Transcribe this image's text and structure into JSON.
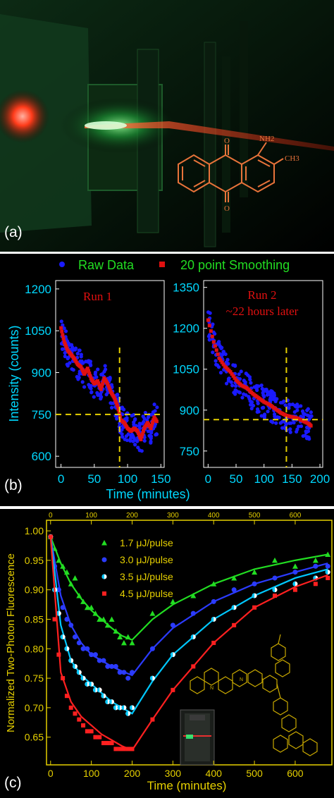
{
  "panel_a": {
    "label": "(a)",
    "molecule": {
      "nh2": "NH2",
      "ch3": "CH3",
      "o_top": "O",
      "o_bottom": "O",
      "color": "#e8733a"
    }
  },
  "panel_b": {
    "label": "(b)",
    "legend": {
      "raw": "Raw Data",
      "smooth": "20 point Smoothing"
    },
    "xlabel": "Time (minutes)",
    "ylabel": "Intensity (counts)",
    "colors": {
      "raw": "#1a1aff",
      "smooth": "#e01010",
      "axis_label": "#00d8ff",
      "legend_text": "#22dd22",
      "guide": "#e6d000"
    }
  },
  "panel_c": {
    "label": "(c)",
    "xlabel": "Time (minutes)",
    "ylabel": "Normalized Two-Photon Fluorescence",
    "colors": {
      "axis": "#e6d000",
      "text": "#e6d000"
    }
  },
  "chart_data": [
    {
      "type": "scatter",
      "title": "Run 1",
      "xlabel": "Time (minutes)",
      "ylabel": "Intensity (counts)",
      "xlim": [
        -8,
        155
      ],
      "ylim": [
        560,
        1230
      ],
      "xticks": [
        0,
        50,
        100,
        150
      ],
      "yticks": [
        600,
        750,
        900,
        1050,
        1200
      ],
      "hline": 750,
      "vline": 88,
      "series": [
        {
          "name": "20 point Smoothing",
          "x": [
            0,
            5,
            10,
            15,
            20,
            25,
            30,
            35,
            40,
            45,
            50,
            55,
            60,
            65,
            70,
            75,
            80,
            85,
            90,
            95,
            100,
            105,
            110,
            115,
            120,
            125,
            130,
            135,
            140,
            145
          ],
          "y": [
            1060,
            1010,
            980,
            965,
            950,
            930,
            920,
            895,
            915,
            880,
            860,
            870,
            840,
            880,
            860,
            830,
            810,
            780,
            730,
            720,
            700,
            690,
            700,
            690,
            660,
            700,
            720,
            700,
            740,
            720
          ]
        }
      ]
    },
    {
      "type": "scatter",
      "title": "Run 2\n~22 hours later",
      "xlabel": "Time (minutes)",
      "ylabel": "",
      "xlim": [
        -8,
        205
      ],
      "ylim": [
        690,
        1375
      ],
      "xticks": [
        0,
        50,
        100,
        150,
        200
      ],
      "yticks": [
        750,
        900,
        1050,
        1200,
        1350
      ],
      "hline": 865,
      "vline": 140,
      "series": [
        {
          "name": "20 point Smoothing",
          "x": [
            0,
            10,
            20,
            30,
            40,
            50,
            60,
            70,
            80,
            90,
            100,
            110,
            120,
            130,
            140,
            150,
            160,
            170,
            180,
            185
          ],
          "y": [
            1230,
            1150,
            1090,
            1060,
            1040,
            1010,
            990,
            980,
            960,
            945,
            930,
            920,
            905,
            890,
            880,
            875,
            870,
            860,
            850,
            840
          ]
        }
      ]
    },
    {
      "type": "scatter",
      "xlabel": "Time (minutes)",
      "ylabel": "Normalized Two-Photon Fluorescence",
      "xlim": [
        -10,
        690
      ],
      "ylim": [
        0.603,
        1.018
      ],
      "xticks": [
        0,
        100,
        200,
        300,
        400,
        500,
        600
      ],
      "yticks": [
        0.65,
        0.7,
        0.75,
        0.8,
        0.85,
        0.9,
        0.95,
        1.0
      ],
      "series": [
        {
          "name": "1.7 μJ/pulse",
          "color": "#22dd22",
          "marker": "triangle",
          "points_x": [
            0,
            10,
            20,
            30,
            40,
            50,
            60,
            70,
            80,
            90,
            100,
            110,
            120,
            130,
            140,
            150,
            160,
            170,
            180,
            190,
            200,
            250,
            300,
            350,
            400,
            450,
            500,
            550,
            600,
            650,
            680
          ],
          "points_y": [
            0.99,
            0.97,
            0.95,
            0.94,
            0.93,
            0.91,
            0.92,
            0.89,
            0.88,
            0.87,
            0.87,
            0.86,
            0.85,
            0.85,
            0.84,
            0.85,
            0.83,
            0.82,
            0.81,
            0.82,
            0.81,
            0.86,
            0.88,
            0.89,
            0.91,
            0.92,
            0.93,
            0.95,
            0.94,
            0.95,
            0.96
          ],
          "fit_x": [
            0,
            25,
            50,
            75,
            100,
            125,
            150,
            175,
            200,
            250,
            300,
            400,
            500,
            600,
            680
          ],
          "fit_y": [
            0.99,
            0.945,
            0.91,
            0.885,
            0.865,
            0.85,
            0.835,
            0.822,
            0.815,
            0.85,
            0.875,
            0.91,
            0.935,
            0.95,
            0.96
          ]
        },
        {
          "name": "3.0 μJ/pulse",
          "color": "#2b3bff",
          "marker": "circle",
          "points_x": [
            0,
            10,
            20,
            30,
            40,
            50,
            60,
            70,
            80,
            90,
            100,
            110,
            120,
            130,
            140,
            150,
            160,
            170,
            180,
            190,
            200,
            250,
            300,
            350,
            400,
            450,
            500,
            550,
            600,
            650,
            680
          ],
          "points_y": [
            0.99,
            0.94,
            0.9,
            0.87,
            0.85,
            0.84,
            0.82,
            0.81,
            0.8,
            0.8,
            0.79,
            0.79,
            0.78,
            0.78,
            0.77,
            0.77,
            0.77,
            0.76,
            0.76,
            0.75,
            0.76,
            0.8,
            0.84,
            0.86,
            0.88,
            0.9,
            0.91,
            0.92,
            0.93,
            0.94,
            0.94
          ],
          "fit_x": [
            0,
            25,
            50,
            75,
            100,
            125,
            150,
            175,
            200,
            250,
            300,
            400,
            500,
            600,
            680
          ],
          "fit_y": [
            0.99,
            0.89,
            0.84,
            0.81,
            0.79,
            0.78,
            0.77,
            0.762,
            0.755,
            0.8,
            0.835,
            0.88,
            0.91,
            0.93,
            0.945
          ]
        },
        {
          "name": "3.5 μJ/pulse",
          "color": "#00c8ff",
          "marker": "half-circle",
          "points_x": [
            0,
            10,
            20,
            30,
            40,
            50,
            60,
            70,
            80,
            90,
            100,
            110,
            120,
            130,
            140,
            150,
            160,
            170,
            180,
            190,
            200,
            250,
            300,
            350,
            400,
            450,
            500,
            550,
            600,
            650,
            680
          ],
          "points_y": [
            0.99,
            0.9,
            0.86,
            0.82,
            0.8,
            0.78,
            0.77,
            0.76,
            0.75,
            0.74,
            0.74,
            0.73,
            0.73,
            0.72,
            0.71,
            0.71,
            0.7,
            0.7,
            0.7,
            0.69,
            0.7,
            0.75,
            0.79,
            0.82,
            0.85,
            0.87,
            0.89,
            0.9,
            0.91,
            0.92,
            0.93
          ],
          "fit_x": [
            0,
            25,
            50,
            75,
            100,
            125,
            150,
            175,
            200,
            250,
            300,
            400,
            500,
            600,
            680
          ],
          "fit_y": [
            0.99,
            0.84,
            0.78,
            0.755,
            0.74,
            0.725,
            0.71,
            0.7,
            0.69,
            0.745,
            0.79,
            0.85,
            0.89,
            0.92,
            0.935
          ]
        },
        {
          "name": "4.5 μJ/pulse",
          "color": "#ff2020",
          "marker": "square",
          "points_x": [
            0,
            10,
            20,
            30,
            40,
            50,
            60,
            70,
            80,
            90,
            100,
            110,
            120,
            130,
            140,
            150,
            160,
            170,
            180,
            190,
            200,
            250,
            300,
            350,
            400,
            450,
            500,
            550,
            600,
            650,
            680
          ],
          "points_y": [
            0.99,
            0.85,
            0.79,
            0.75,
            0.72,
            0.7,
            0.69,
            0.68,
            0.67,
            0.66,
            0.66,
            0.65,
            0.65,
            0.64,
            0.64,
            0.64,
            0.63,
            0.63,
            0.63,
            0.63,
            0.63,
            0.68,
            0.73,
            0.77,
            0.81,
            0.84,
            0.87,
            0.89,
            0.9,
            0.91,
            0.92
          ],
          "fit_x": [
            0,
            25,
            50,
            75,
            100,
            125,
            150,
            175,
            200,
            250,
            300,
            400,
            500,
            600,
            680
          ],
          "fit_y": [
            0.99,
            0.76,
            0.71,
            0.685,
            0.67,
            0.655,
            0.645,
            0.635,
            0.628,
            0.68,
            0.73,
            0.81,
            0.87,
            0.905,
            0.925
          ]
        }
      ]
    }
  ]
}
